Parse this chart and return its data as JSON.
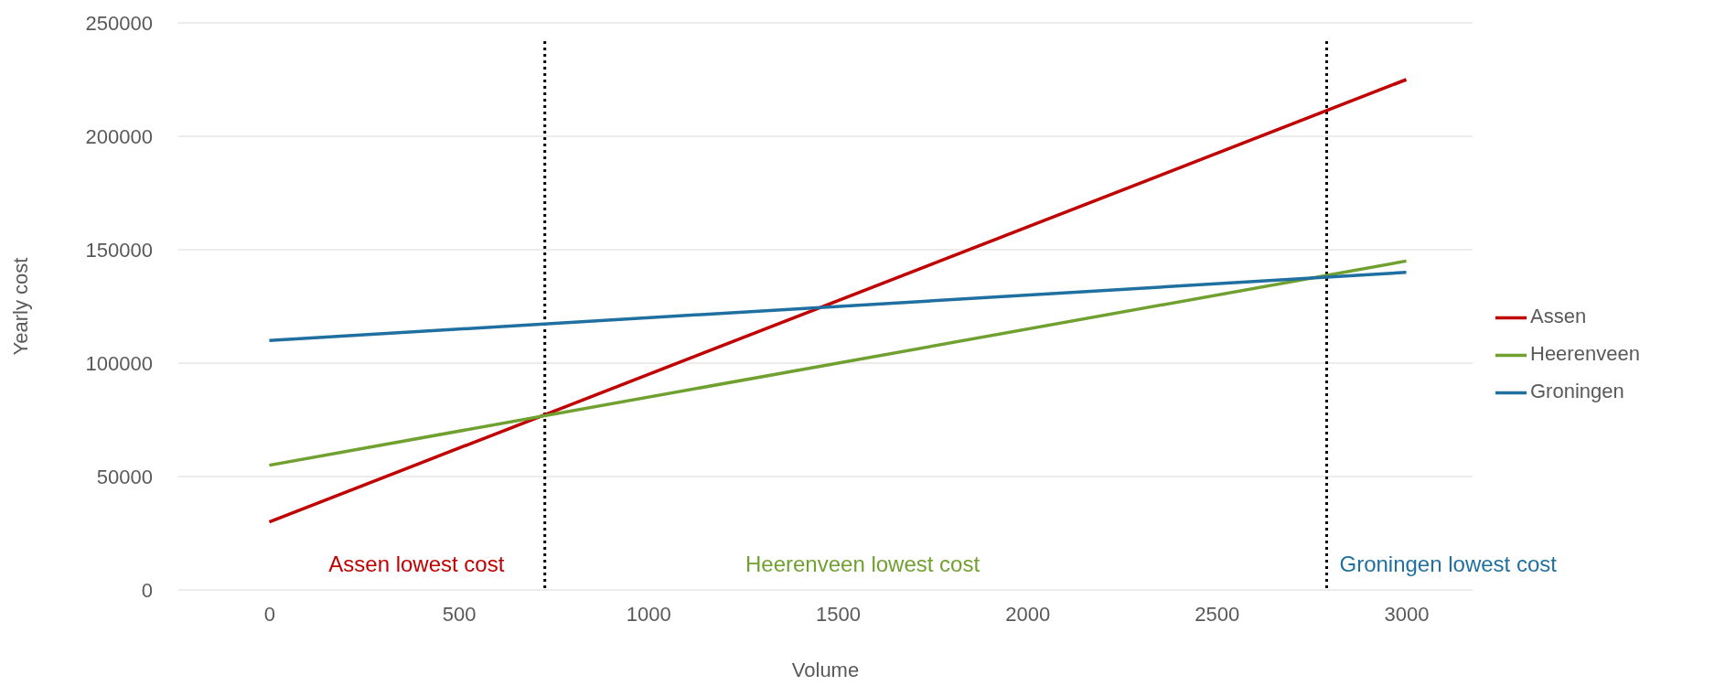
{
  "chart_data": {
    "type": "line",
    "xlabel": "Volume",
    "ylabel": "Yearly cost",
    "series": [
      {
        "name": "Assen",
        "color": "#c00000",
        "values": [
          30000,
          225000
        ]
      },
      {
        "name": "Heerenveen",
        "color": "#70a030",
        "values": [
          55000,
          145000
        ]
      },
      {
        "name": "Groningen",
        "color": "#1f6fa0",
        "values": [
          110000,
          140000
        ]
      }
    ],
    "x": [
      0,
      3000
    ],
    "xlim": [
      -240,
      3175
    ],
    "xticks": [
      0,
      500,
      1000,
      1500,
      2000,
      2500,
      3000
    ],
    "ylim": [
      0,
      250000
    ],
    "yticks": [
      0,
      50000,
      100000,
      150000,
      200000,
      250000
    ],
    "grid": "y",
    "legend": "right",
    "marker": "none",
    "line_style": "solid",
    "ref_lines": [
      {
        "axis": "x",
        "value": 727,
        "color": "#000000",
        "line_style": "dotted"
      },
      {
        "axis": "x",
        "value": 2790,
        "color": "#000000",
        "line_style": "dotted"
      }
    ],
    "annotations": [
      "Assen lowest cost",
      "Heerenveen lowest cost",
      "Groningen lowest cost"
    ]
  }
}
